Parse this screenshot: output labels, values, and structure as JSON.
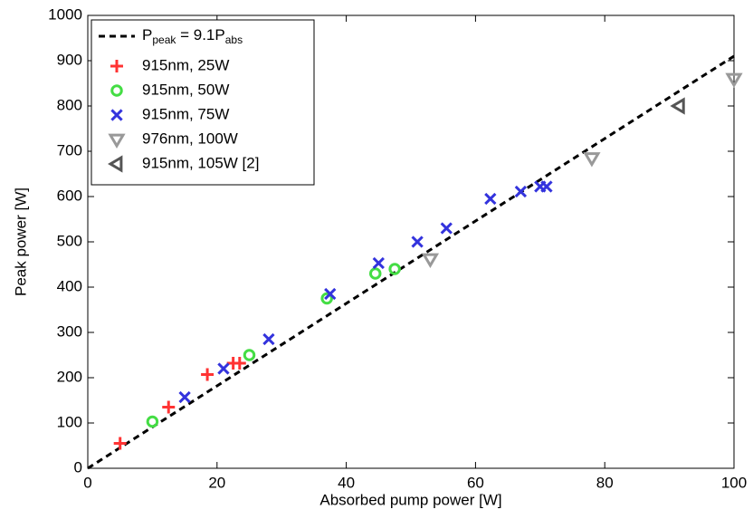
{
  "chart_data": {
    "type": "scatter",
    "xlabel": "Absorbed pump power [W]",
    "ylabel": "Peak power [W]",
    "xlim": [
      0,
      100
    ],
    "ylim": [
      0,
      1000
    ],
    "xticks": [
      0,
      20,
      40,
      60,
      80,
      100
    ],
    "yticks": [
      0,
      100,
      200,
      300,
      400,
      500,
      600,
      700,
      800,
      900,
      1000
    ],
    "legend": "upper left",
    "series": [
      {
        "kind": "line",
        "name_parts": [
          "P",
          "peak",
          " = 9.1P",
          "abs"
        ],
        "subscript": [
          false,
          true,
          false,
          true
        ],
        "color": "#000000",
        "x": [
          0,
          100
        ],
        "values": [
          0,
          910
        ]
      },
      {
        "kind": "marker",
        "marker": "+",
        "name": "915nm, 25W",
        "color": "#ff3333",
        "x": [
          5,
          12.5,
          18.5,
          22.5,
          23.5
        ],
        "values": [
          55,
          135,
          207,
          232,
          232
        ]
      },
      {
        "kind": "marker",
        "marker": "o",
        "name": "915nm, 50W",
        "color": "#44dd44",
        "x": [
          10,
          25,
          37,
          44.5,
          47.5
        ],
        "values": [
          103,
          250,
          375,
          430,
          440
        ]
      },
      {
        "kind": "marker",
        "marker": "x",
        "name": "915nm, 75W",
        "color": "#3333dd",
        "x": [
          15,
          21,
          28,
          37.5,
          45,
          51,
          55.5,
          62.3,
          67,
          70,
          71
        ],
        "values": [
          157,
          220,
          285,
          385,
          453,
          500,
          530,
          595,
          611,
          622,
          622
        ]
      },
      {
        "kind": "marker",
        "marker": "v",
        "name": "976nm, 100W",
        "color": "#999999",
        "x": [
          53,
          78,
          100
        ],
        "values": [
          462,
          685,
          860
        ]
      },
      {
        "kind": "marker",
        "marker": "<",
        "name": "915nm, 105W [2]",
        "color": "#555555",
        "x": [
          91.5
        ],
        "values": [
          800
        ]
      }
    ]
  }
}
